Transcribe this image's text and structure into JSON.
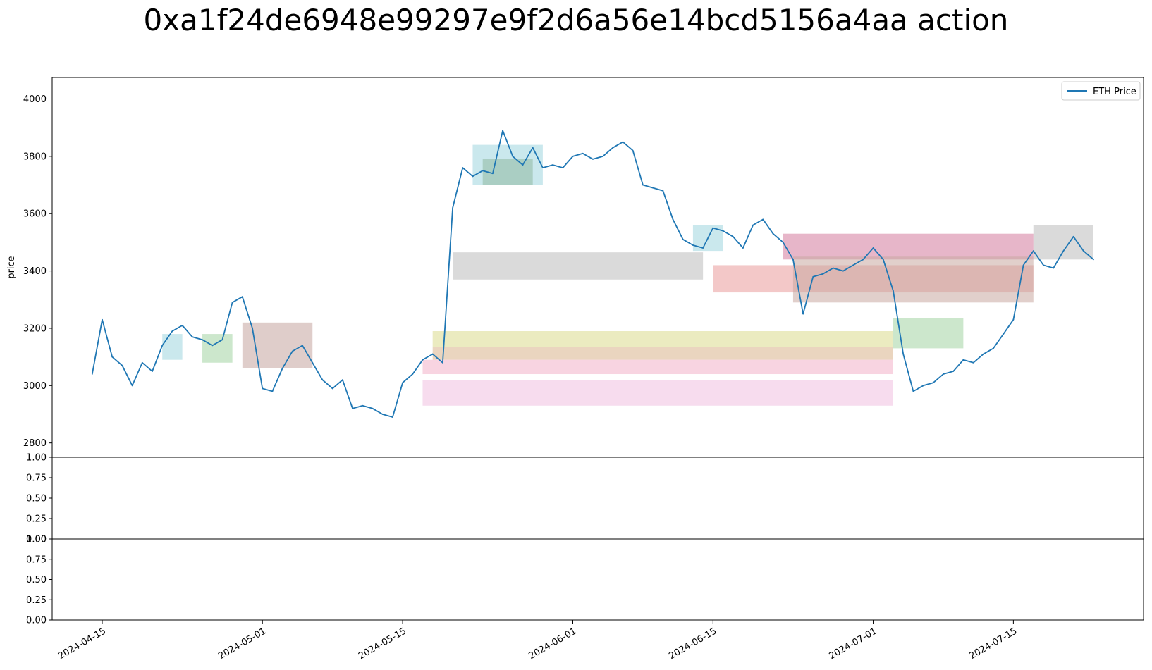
{
  "chart_data": [
    {
      "type": "line",
      "title": "0xa1f24de6948e99297e9f2d6a56e14bcd5156a4aa action",
      "ylabel": "price",
      "xlabel": "",
      "ylim": [
        2750,
        4075
      ],
      "xlim": [
        "2024-04-10",
        "2024-07-28"
      ],
      "y_ticks": [
        2800,
        3000,
        3200,
        3400,
        3600,
        3800,
        4000
      ],
      "x_ticks": [
        "2024-04-15",
        "2024-05-01",
        "2024-05-15",
        "2024-06-01",
        "2024-06-15",
        "2024-07-01",
        "2024-07-15"
      ],
      "legend": {
        "position": "top-right",
        "entries": [
          "ETH Price"
        ]
      },
      "grid": false,
      "line_color": "#1f77b4",
      "series": [
        {
          "name": "ETH Price",
          "x": [
            "2024-04-14",
            "2024-04-15",
            "2024-04-16",
            "2024-04-17",
            "2024-04-18",
            "2024-04-19",
            "2024-04-20",
            "2024-04-21",
            "2024-04-22",
            "2024-04-23",
            "2024-04-24",
            "2024-04-25",
            "2024-04-26",
            "2024-04-27",
            "2024-04-28",
            "2024-04-29",
            "2024-04-30",
            "2024-05-01",
            "2024-05-02",
            "2024-05-03",
            "2024-05-04",
            "2024-05-05",
            "2024-05-06",
            "2024-05-07",
            "2024-05-08",
            "2024-05-09",
            "2024-05-10",
            "2024-05-11",
            "2024-05-12",
            "2024-05-13",
            "2024-05-14",
            "2024-05-15",
            "2024-05-16",
            "2024-05-17",
            "2024-05-18",
            "2024-05-19",
            "2024-05-20",
            "2024-05-21",
            "2024-05-22",
            "2024-05-23",
            "2024-05-24",
            "2024-05-25",
            "2024-05-26",
            "2024-05-27",
            "2024-05-28",
            "2024-05-29",
            "2024-05-30",
            "2024-05-31",
            "2024-06-01",
            "2024-06-02",
            "2024-06-03",
            "2024-06-04",
            "2024-06-05",
            "2024-06-06",
            "2024-06-07",
            "2024-06-08",
            "2024-06-09",
            "2024-06-10",
            "2024-06-11",
            "2024-06-12",
            "2024-06-13",
            "2024-06-14",
            "2024-06-15",
            "2024-06-16",
            "2024-06-17",
            "2024-06-18",
            "2024-06-19",
            "2024-06-20",
            "2024-06-21",
            "2024-06-22",
            "2024-06-23",
            "2024-06-24",
            "2024-06-25",
            "2024-06-26",
            "2024-06-27",
            "2024-06-28",
            "2024-06-29",
            "2024-06-30",
            "2024-07-01",
            "2024-07-02",
            "2024-07-03",
            "2024-07-04",
            "2024-07-05",
            "2024-07-06",
            "2024-07-07",
            "2024-07-08",
            "2024-07-09",
            "2024-07-10",
            "2024-07-11",
            "2024-07-12",
            "2024-07-13",
            "2024-07-14",
            "2024-07-15",
            "2024-07-16",
            "2024-07-17",
            "2024-07-18",
            "2024-07-19",
            "2024-07-20",
            "2024-07-21",
            "2024-07-22",
            "2024-07-23"
          ],
          "y": [
            3040,
            3230,
            3100,
            3070,
            3000,
            3080,
            3050,
            3140,
            3190,
            3210,
            3170,
            3160,
            3140,
            3160,
            3290,
            3310,
            3200,
            2990,
            2980,
            3060,
            3120,
            3140,
            3080,
            3020,
            2990,
            3020,
            2920,
            2930,
            2920,
            2900,
            2890,
            3010,
            3040,
            3090,
            3110,
            3080,
            3620,
            3760,
            3730,
            3750,
            3740,
            3890,
            3800,
            3770,
            3830,
            3760,
            3770,
            3760,
            3800,
            3810,
            3790,
            3800,
            3830,
            3850,
            3820,
            3700,
            3690,
            3680,
            3580,
            3510,
            3490,
            3480,
            3550,
            3540,
            3520,
            3480,
            3560,
            3580,
            3530,
            3500,
            3440,
            3250,
            3380,
            3390,
            3410,
            3400,
            3420,
            3440,
            3480,
            3440,
            3330,
            3110,
            2980,
            3000,
            3010,
            3040,
            3050,
            3090,
            3080,
            3110,
            3130,
            3180,
            3230,
            3420,
            3470,
            3420,
            3410,
            3470,
            3520,
            3470,
            3440
          ]
        }
      ],
      "action_ranges": [
        {
          "x_start": "2024-05-20",
          "x_end": "2024-06-14",
          "y_low": 3370,
          "y_high": 3465,
          "color": "#bbbbbb"
        },
        {
          "x_start": "2024-05-18",
          "x_end": "2024-07-03",
          "y_low": 3135,
          "y_high": 3190,
          "color": "#dbdb8d"
        },
        {
          "x_start": "2024-05-18",
          "x_end": "2024-07-03",
          "y_low": 3090,
          "y_high": 3135,
          "color": "#d9b28a"
        },
        {
          "x_start": "2024-05-17",
          "x_end": "2024-07-03",
          "y_low": 3040,
          "y_high": 3090,
          "color": "#f2b0c8"
        },
        {
          "x_start": "2024-05-17",
          "x_end": "2024-07-03",
          "y_low": 2930,
          "y_high": 3020,
          "color": "#f0c0e0"
        },
        {
          "x_start": "2024-06-15",
          "x_end": "2024-07-17",
          "y_low": 3325,
          "y_high": 3420,
          "color": "#e99b9b"
        },
        {
          "x_start": "2024-06-22",
          "x_end": "2024-07-17",
          "y_low": 3440,
          "y_high": 3530,
          "color": "#d47a9c"
        },
        {
          "x_start": "2024-06-23",
          "x_end": "2024-07-17",
          "y_low": 3290,
          "y_high": 3450,
          "color": "#c9a7a1"
        },
        {
          "x_start": "2024-04-29",
          "x_end": "2024-05-06",
          "y_low": 3060,
          "y_high": 3220,
          "color": "#c4a49f"
        },
        {
          "x_start": "2024-05-22",
          "x_end": "2024-05-29",
          "y_low": 3700,
          "y_high": 3840,
          "color": "#9fd6de"
        },
        {
          "x_start": "2024-05-23",
          "x_end": "2024-05-28",
          "y_low": 3700,
          "y_high": 3790,
          "color": "#90b8a0"
        },
        {
          "x_start": "2024-07-03",
          "x_end": "2024-07-10",
          "y_low": 3130,
          "y_high": 3235,
          "color": "#a3d3a3"
        },
        {
          "x_start": "2024-07-17",
          "x_end": "2024-07-23",
          "y_low": 3440,
          "y_high": 3560,
          "color": "#bbbbbb"
        },
        {
          "x_start": "2024-06-13",
          "x_end": "2024-06-16",
          "y_low": 3470,
          "y_high": 3560,
          "color": "#9fd6de"
        },
        {
          "x_start": "2024-04-21",
          "x_end": "2024-04-23",
          "y_low": 3090,
          "y_high": 3180,
          "color": "#9fd6de"
        },
        {
          "x_start": "2024-04-25",
          "x_end": "2024-04-28",
          "y_low": 3080,
          "y_high": 3180,
          "color": "#a3d3a3"
        }
      ]
    },
    {
      "type": "line",
      "title": "",
      "y_ticks": [
        "0.00",
        "0.25",
        "0.50",
        "0.75",
        "1.00"
      ],
      "ylim": [
        0,
        1
      ],
      "series": []
    },
    {
      "type": "line",
      "title": "",
      "y_ticks": [
        "0.00",
        "0.25",
        "0.50",
        "0.75",
        "1.00"
      ],
      "ylim": [
        0,
        1
      ],
      "series": []
    }
  ]
}
